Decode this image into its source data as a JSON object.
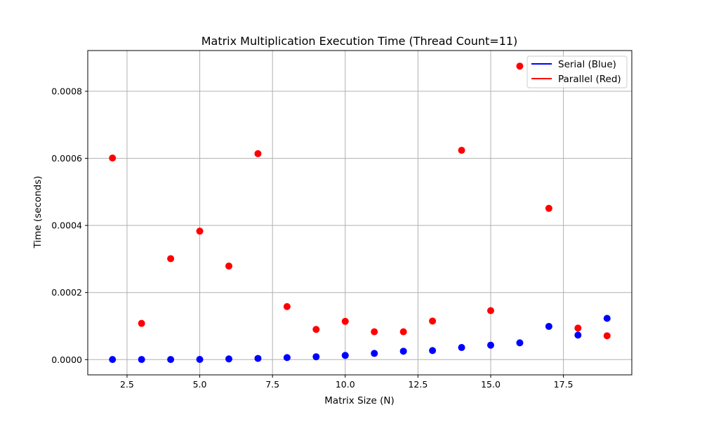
{
  "chart_data": {
    "type": "scatter",
    "title": "Matrix Multiplication Execution Time (Thread Count=11)",
    "xlabel": "Matrix Size (N)",
    "ylabel": "Time (seconds)",
    "xlim": [
      1.15,
      19.85
    ],
    "ylim": [
      -4.55e-05,
      0.0009215
    ],
    "x_ticks": [
      2.5,
      5.0,
      7.5,
      10.0,
      12.5,
      15.0,
      17.5
    ],
    "x_tick_labels": [
      "2.5",
      "5.0",
      "7.5",
      "10.0",
      "12.5",
      "15.0",
      "17.5"
    ],
    "y_ticks": [
      0.0,
      0.0002,
      0.0004,
      0.0006,
      0.0008
    ],
    "y_tick_labels": [
      "0.0000",
      "0.0002",
      "0.0004",
      "0.0006",
      "0.0008"
    ],
    "grid": true,
    "legend_position": "top-right",
    "series": [
      {
        "name": "Serial (Blue)",
        "color": "#0000ff",
        "x": [
          2,
          3,
          4,
          5,
          6,
          7,
          8,
          9,
          10,
          11,
          12,
          13,
          14,
          15,
          16,
          17,
          18,
          19
        ],
        "y": [
          3e-07,
          4e-07,
          4e-07,
          6e-07,
          2e-06,
          3.5e-06,
          6e-06,
          8.5e-06,
          1.25e-05,
          1.85e-05,
          2.5e-05,
          2.7e-05,
          3.6e-05,
          4.3e-05,
          5e-05,
          9.9e-05,
          7.3e-05,
          0.000123
        ]
      },
      {
        "name": "Parallel (Red)",
        "color": "#ff0000",
        "x": [
          2,
          3,
          4,
          5,
          6,
          7,
          8,
          9,
          10,
          11,
          12,
          13,
          14,
          15,
          16,
          17,
          18,
          19
        ],
        "y": [
          0.000601,
          0.000108,
          0.000301,
          0.000383,
          0.000279,
          0.000614,
          0.000158,
          9e-05,
          0.000114,
          8.3e-05,
          8.3e-05,
          0.000115,
          0.000624,
          0.000146,
          0.000875,
          0.000451,
          9.4e-05,
          7.1e-05
        ]
      }
    ]
  }
}
